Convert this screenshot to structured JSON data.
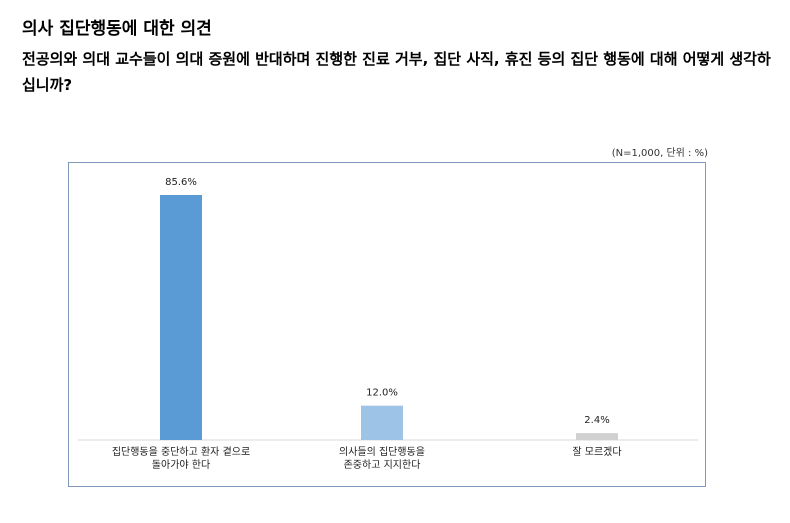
{
  "title": "의사 집단행동에 대한 의견",
  "question": "전공의와 의대 교수들이 의대 증원에 반대하며 진행한 진료 거부, 집단 사직, 휴진 등의 집단 행동에 대해 어떻게 생각하십니까?",
  "note": "(N=1,000, 단위 : %)",
  "colors": {
    "bar1": "#5b9bd5",
    "bar2": "#9dc3e6",
    "bar3": "#d0d0d0",
    "frame": "#7f97b8"
  },
  "chart_data": {
    "type": "bar",
    "categories": [
      [
        "집단행동을 중단하고 환자 곁으로",
        "돌아가야 한다"
      ],
      [
        "의사들의 집단행동을",
        "존중하고 지지한다"
      ],
      [
        "잘 모르겠다"
      ]
    ],
    "values": [
      85.6,
      12.0,
      2.4
    ],
    "value_labels": [
      "85.6%",
      "12.0%",
      "2.4%"
    ],
    "ylim": [
      0,
      100
    ],
    "grid": false,
    "legend": "none"
  }
}
